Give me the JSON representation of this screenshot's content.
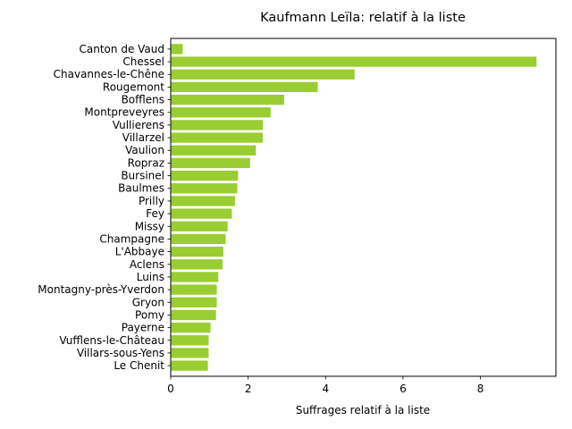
{
  "chart_data": {
    "type": "bar",
    "orientation": "horizontal",
    "title": "Kaufmann Leïla: relatif à la liste",
    "xlabel": "Suffrages relatif à la liste",
    "ylabel": "",
    "xlim": [
      0,
      9.95
    ],
    "xticks": [
      0,
      2,
      4,
      6,
      8
    ],
    "grid": false,
    "bar_color": "#9acd32",
    "categories": [
      "Canton de Vaud",
      "Chessel",
      "Chavannes-le-Chêne",
      "Rougemont",
      "Bofflens",
      "Montpreveyres",
      "Vullierens",
      "Villarzel",
      "Vaulion",
      "Ropraz",
      "Bursinel",
      "Baulmes",
      "Prilly",
      "Fey",
      "Missy",
      "Champagne",
      "L'Abbaye",
      "Aclens",
      "Luins",
      "Montagny-près-Yverdon",
      "Gryon",
      "Pomy",
      "Payerne",
      "Vufflens-le-Château",
      "Villars-sous-Yens",
      "Le Chenit"
    ],
    "values": [
      0.31,
      9.45,
      4.75,
      3.8,
      2.93,
      2.58,
      2.38,
      2.38,
      2.2,
      2.05,
      1.74,
      1.72,
      1.66,
      1.58,
      1.47,
      1.42,
      1.36,
      1.34,
      1.23,
      1.19,
      1.19,
      1.17,
      1.03,
      0.98,
      0.98,
      0.96
    ]
  }
}
